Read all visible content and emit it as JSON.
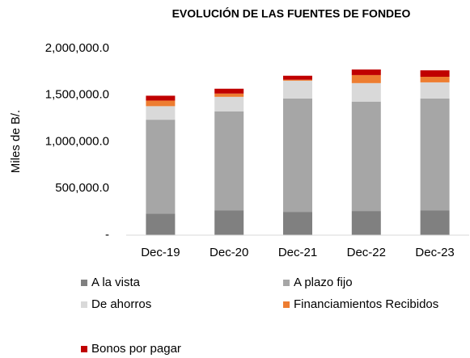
{
  "chart_data": {
    "type": "stacked_bar",
    "title": "EVOLUCIÓN DE LAS FUENTES DE FONDEO",
    "y_label": "Miles de B/.",
    "categories": [
      "Dec-19",
      "Dec-20",
      "Dec-21",
      "Dec-22",
      "Dec-23"
    ],
    "series": [
      {
        "name": "A la vista",
        "color": "#808080",
        "values": [
          232000,
          267000,
          250000,
          259000,
          267000
        ]
      },
      {
        "name": "A plazo fijo",
        "color": "#a6a6a6",
        "values": [
          1005000,
          1060000,
          1215000,
          1172000,
          1198000
        ]
      },
      {
        "name": "De ahorros",
        "color": "#d9d9d9",
        "values": [
          145000,
          155000,
          190000,
          198000,
          172000
        ]
      },
      {
        "name": "Financiamientos Recibidos",
        "color": "#ed7d31",
        "values": [
          60000,
          35000,
          10000,
          86000,
          60000
        ]
      },
      {
        "name": "Bonos por pagar",
        "color": "#c00000",
        "values": [
          52000,
          52000,
          43000,
          60000,
          69000
        ]
      }
    ],
    "ylim": [
      0,
      2000000
    ],
    "yticks": [
      {
        "value": 0,
        "label": "-"
      },
      {
        "value": 500000,
        "label": "500,000.0"
      },
      {
        "value": 1000000,
        "label": "1,000,000.0"
      },
      {
        "value": 1500000,
        "label": "1,500,000.0"
      },
      {
        "value": 2000000,
        "label": "2,000,000.0"
      }
    ],
    "legend": "bottom"
  }
}
